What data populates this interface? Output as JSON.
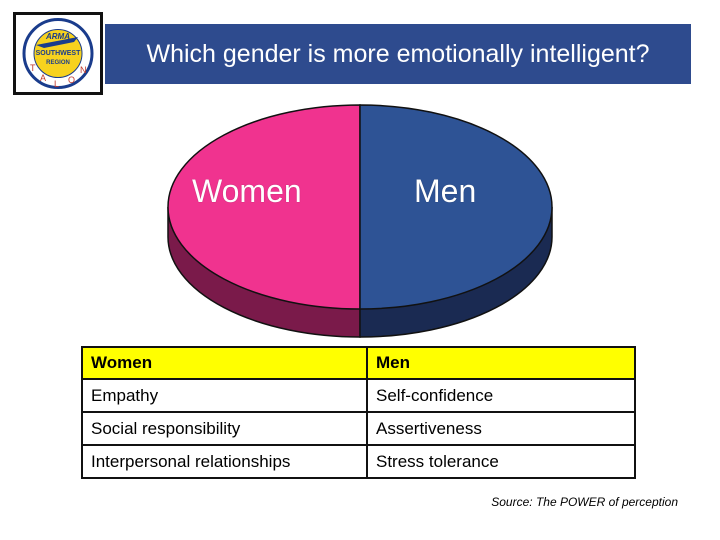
{
  "title": "Which gender is more emotionally intelligent?",
  "logo": {
    "icon": "aircraft-association-logo-icon",
    "text_top": "ARMA",
    "text_middle": "SOUTHWEST",
    "text_lower": "REGION",
    "ring_letters": [
      "T",
      "A",
      "L",
      "O",
      "N"
    ]
  },
  "pie": {
    "left_label": "Women",
    "right_label": "Men",
    "colors": {
      "women_top": "#f0338f",
      "women_side": "#7a1a4a",
      "men_top": "#2e5395",
      "men_side": "#1a2a52"
    }
  },
  "table": {
    "headers": [
      "Women",
      "Men"
    ],
    "rows": [
      [
        "Empathy",
        "Self-confidence"
      ],
      [
        "Social responsibility",
        "Assertiveness"
      ],
      [
        "Interpersonal relationships",
        "Stress tolerance"
      ]
    ],
    "header_color": "#ffff00"
  },
  "source": "Source: The POWER of perception",
  "colors": {
    "title_bar": "#2e4b8e"
  }
}
